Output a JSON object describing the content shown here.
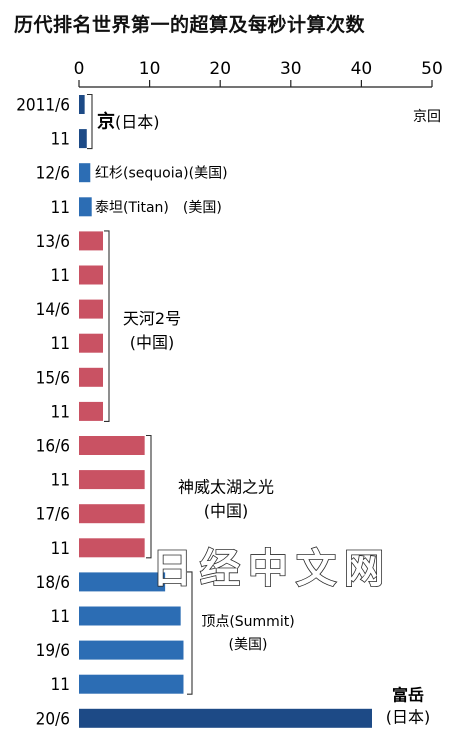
{
  "chart_data": {
    "type": "bar",
    "orientation": "horizontal",
    "title": "历代排名世界第一的超算及每秒计算次数",
    "unit_label": "京回",
    "xlim": [
      0,
      50
    ],
    "x_ticks": [
      0,
      10,
      20,
      30,
      40,
      50
    ],
    "categories": [
      "2011/6",
      "11",
      "12/6",
      "11",
      "13/6",
      "11",
      "14/6",
      "11",
      "15/6",
      "11",
      "16/6",
      "11",
      "17/6",
      "11",
      "18/6",
      "11",
      "19/6",
      "11",
      "20/6"
    ],
    "values": [
      0.8,
      1.1,
      1.6,
      1.8,
      3.4,
      3.4,
      3.4,
      3.4,
      3.4,
      3.4,
      9.3,
      9.3,
      9.3,
      9.3,
      12.2,
      14.4,
      14.8,
      14.8,
      41.5
    ],
    "colors": {
      "japan": "#1d4a86",
      "usa": "#2c6db4",
      "china": "#c95263"
    },
    "bar_groups": [
      "japan",
      "japan",
      "usa",
      "usa",
      "china",
      "china",
      "china",
      "china",
      "china",
      "china",
      "china",
      "china",
      "china",
      "china",
      "usa",
      "usa",
      "usa",
      "usa",
      "japan"
    ],
    "annotations": [
      {
        "name": "京",
        "country": "(日本)",
        "from": 0,
        "to": 1
      },
      {
        "name": "红杉(sequoia)(美国)",
        "country": "",
        "from": 2,
        "to": 2
      },
      {
        "name": "泰坦(Titan)　(美国)",
        "country": "",
        "from": 3,
        "to": 3
      },
      {
        "name": "天河2号",
        "country": "(中国)",
        "from": 4,
        "to": 9
      },
      {
        "name": "神威太湖之光",
        "country": "(中国)",
        "from": 10,
        "to": 13
      },
      {
        "name": "顶点(Summit)",
        "country": "(美国)",
        "from": 14,
        "to": 17
      },
      {
        "name": "富岳",
        "country": "(日本)",
        "from": 18,
        "to": 18
      }
    ]
  },
  "watermark": "日经中文网"
}
